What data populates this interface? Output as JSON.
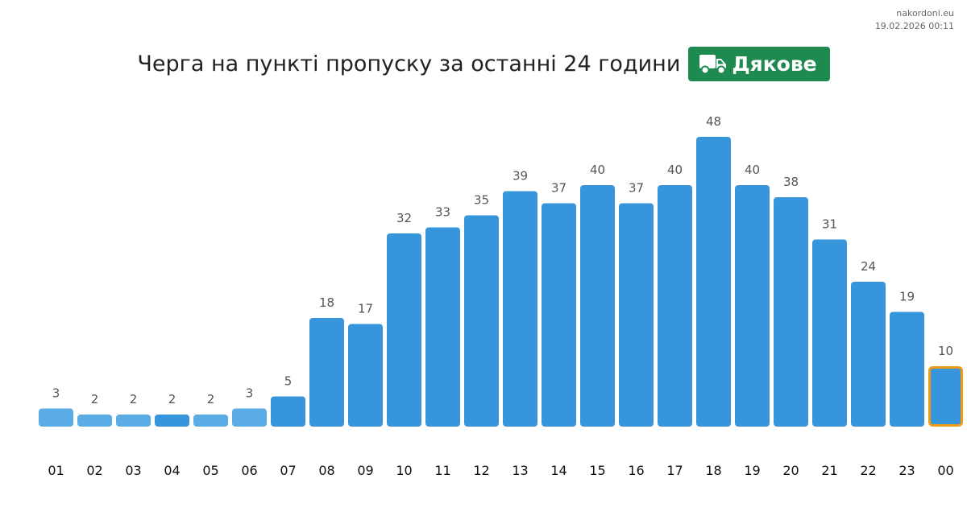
{
  "source": {
    "site": "nakordoni.eu",
    "timestamp": "19.02.2026 00:11"
  },
  "header": {
    "title": "Черга на пункті пропуску за останні 24 години",
    "checkpoint": "Дякове",
    "icon": "truck-icon",
    "badge_color": "#1e8a4f"
  },
  "colors": {
    "bar": "#3796db",
    "bar_low": "#5aade4",
    "highlight": "#f09a16"
  },
  "chart_data": {
    "type": "bar",
    "title": "Черга на пункті пропуску за останні 24 години",
    "categories": [
      "01",
      "02",
      "03",
      "04",
      "05",
      "06",
      "07",
      "08",
      "09",
      "10",
      "11",
      "12",
      "13",
      "14",
      "15",
      "16",
      "17",
      "18",
      "19",
      "20",
      "21",
      "22",
      "23",
      "00"
    ],
    "values": [
      3,
      2,
      2,
      2,
      2,
      3,
      5,
      18,
      17,
      32,
      33,
      35,
      39,
      37,
      40,
      37,
      40,
      48,
      40,
      38,
      31,
      24,
      19,
      10
    ],
    "highlighted_category": "00",
    "grid": false,
    "legend": "none"
  }
}
